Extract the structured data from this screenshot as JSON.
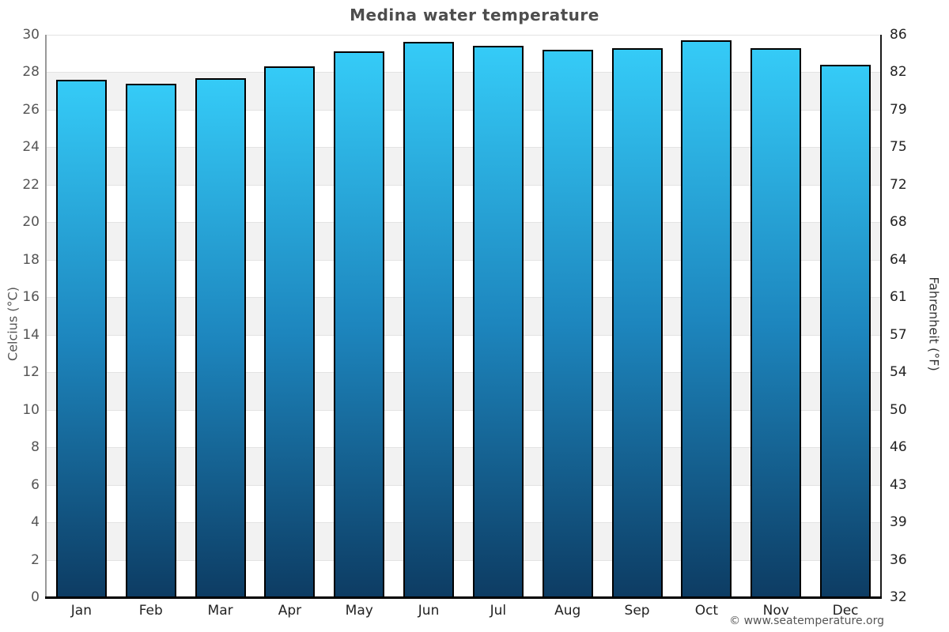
{
  "title": "Medina water temperature",
  "footer": {
    "copyright": "© www.seatemperature.org"
  },
  "chart_data": {
    "type": "bar",
    "title": "Medina water temperature",
    "categories": [
      "Jan",
      "Feb",
      "Mar",
      "Apr",
      "May",
      "Jun",
      "Jul",
      "Aug",
      "Sep",
      "Oct",
      "Nov",
      "Dec"
    ],
    "values": [
      27.6,
      27.4,
      27.7,
      28.3,
      29.1,
      29.6,
      29.4,
      29.2,
      29.3,
      29.7,
      29.3,
      28.4
    ],
    "unit": "°C",
    "ylabel_left": "Celcius (°C)",
    "ylabel_right": "Fahrenheit (°F)",
    "xlabel": "",
    "ylim": [
      0,
      30
    ],
    "ytick_step": 2,
    "yticks_celsius": [
      30,
      28,
      26,
      24,
      22,
      20,
      18,
      16,
      14,
      12,
      10,
      8,
      6,
      4,
      2,
      0
    ],
    "yticks_fahrenheit": [
      86,
      82,
      79,
      75,
      72,
      68,
      64,
      61,
      57,
      54,
      50,
      46,
      43,
      39,
      36,
      32
    ],
    "grid": "horizontal-alternating-bands",
    "legend": "none",
    "colors": {
      "bar_top": "#35cbf7",
      "bar_mid": "#1d86be",
      "bar_bottom": "#0d3c63",
      "bar_border": "#000000",
      "band_alt": "#f2f2f2",
      "gridline": "#e3e3e3",
      "axis_left": "#999999",
      "axis_right": "#1a1a1a",
      "axis_bottom": "#000000",
      "title_color": "#4d4d4d"
    }
  }
}
